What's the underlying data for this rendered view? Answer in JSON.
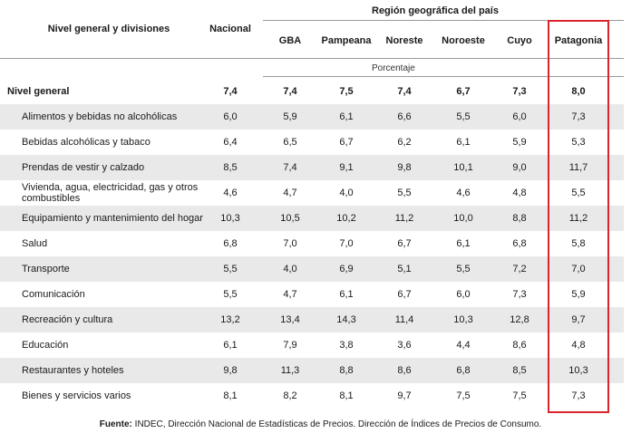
{
  "header": {
    "col_label": "Nivel general y divisiones",
    "col_nacional": "Nacional",
    "region_group": "Región geográfica del país",
    "regions": [
      "GBA",
      "Pampeana",
      "Noreste",
      "Noroeste",
      "Cuyo",
      "Patagonia"
    ],
    "units": "Porcentaje"
  },
  "rows": [
    {
      "label": "Nivel general",
      "bold": true,
      "values": [
        "7,4",
        "7,4",
        "7,5",
        "7,4",
        "6,7",
        "7,3",
        "8,0"
      ]
    },
    {
      "label": "Alimentos y bebidas no alcohólicas",
      "values": [
        "6,0",
        "5,9",
        "6,1",
        "6,6",
        "5,5",
        "6,0",
        "7,3"
      ]
    },
    {
      "label": "Bebidas alcohólicas y tabaco",
      "values": [
        "6,4",
        "6,5",
        "6,7",
        "6,2",
        "6,1",
        "5,9",
        "5,3"
      ]
    },
    {
      "label": "Prendas de vestir y calzado",
      "values": [
        "8,5",
        "7,4",
        "9,1",
        "9,8",
        "10,1",
        "9,0",
        "11,7"
      ]
    },
    {
      "label": "Vivienda, agua, electricidad, gas y otros combustibles",
      "values": [
        "4,6",
        "4,7",
        "4,0",
        "5,5",
        "4,6",
        "4,8",
        "5,5"
      ]
    },
    {
      "label": "Equipamiento y mantenimiento del hogar",
      "values": [
        "10,3",
        "10,5",
        "10,2",
        "11,2",
        "10,0",
        "8,8",
        "11,2"
      ]
    },
    {
      "label": "Salud",
      "values": [
        "6,8",
        "7,0",
        "7,0",
        "6,7",
        "6,1",
        "6,8",
        "5,8"
      ]
    },
    {
      "label": "Transporte",
      "values": [
        "5,5",
        "4,0",
        "6,9",
        "5,1",
        "5,5",
        "7,2",
        "7,0"
      ]
    },
    {
      "label": "Comunicación",
      "values": [
        "5,5",
        "4,7",
        "6,1",
        "6,7",
        "6,0",
        "7,3",
        "5,9"
      ]
    },
    {
      "label": "Recreación y cultura",
      "values": [
        "13,2",
        "13,4",
        "14,3",
        "11,4",
        "10,3",
        "12,8",
        "9,7"
      ]
    },
    {
      "label": "Educación",
      "values": [
        "6,1",
        "7,9",
        "3,8",
        "3,6",
        "4,4",
        "8,6",
        "4,8"
      ]
    },
    {
      "label": "Restaurantes y hoteles",
      "values": [
        "9,8",
        "11,3",
        "8,8",
        "8,6",
        "6,8",
        "8,5",
        "10,3"
      ]
    },
    {
      "label": "Bienes y servicios varios",
      "values": [
        "8,1",
        "8,2",
        "8,1",
        "9,7",
        "7,5",
        "7,5",
        "7,3"
      ]
    }
  ],
  "source": {
    "prefix": "Fuente:",
    "text": " INDEC, Dirección Nacional de Estadísticas de Precios. Dirección de Índices de Precios de Consumo."
  },
  "highlight_color": "#d9262c"
}
